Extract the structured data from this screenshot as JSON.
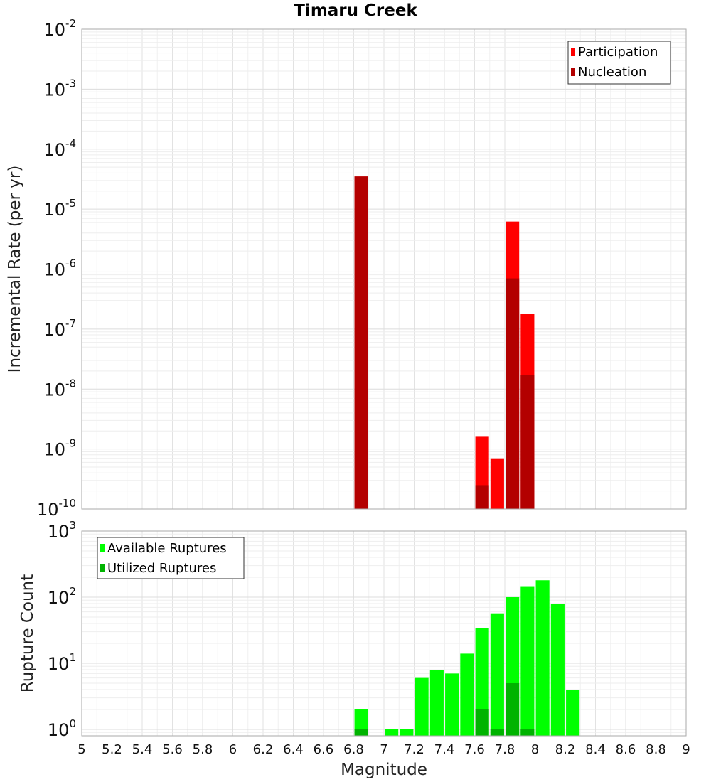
{
  "title": "Timaru Creek",
  "xlabel": "Magnitude",
  "chart_data": [
    {
      "type": "bar",
      "ylabel": "Incremental Rate (per yr)",
      "yscale": "log",
      "ylim": [
        1e-10,
        0.01
      ],
      "xlim": [
        5,
        9
      ],
      "x_ticks": [
        "5",
        "5.2",
        "5.4",
        "5.6",
        "5.8",
        "6",
        "6.2",
        "6.4",
        "6.6",
        "6.8",
        "7",
        "7.2",
        "7.4",
        "7.6",
        "7.8",
        "8",
        "8.2",
        "8.4",
        "8.6",
        "8.8",
        "9"
      ],
      "y_ticks": [
        {
          "base": "10",
          "exp": "-10",
          "value": 1e-10
        },
        {
          "base": "10",
          "exp": "-9",
          "value": 1e-09
        },
        {
          "base": "10",
          "exp": "-8",
          "value": 1e-08
        },
        {
          "base": "10",
          "exp": "-7",
          "value": 1e-07
        },
        {
          "base": "10",
          "exp": "-6",
          "value": 1e-06
        },
        {
          "base": "10",
          "exp": "-5",
          "value": 1e-05
        },
        {
          "base": "10",
          "exp": "-4",
          "value": 0.0001
        },
        {
          "base": "10",
          "exp": "-3",
          "value": 0.001
        },
        {
          "base": "10",
          "exp": "-2",
          "value": 0.01
        }
      ],
      "grid": true,
      "legend_position": "top-right",
      "bar_width": 0.09,
      "series": [
        {
          "name": "Participation",
          "color": "#ff0000",
          "points": [
            {
              "x": 6.85,
              "y": 3.5e-05
            },
            {
              "x": 7.65,
              "y": 1.6e-09
            },
            {
              "x": 7.75,
              "y": 7e-10
            },
            {
              "x": 7.85,
              "y": 6.2e-06
            },
            {
              "x": 7.95,
              "y": 1.8e-07
            }
          ]
        },
        {
          "name": "Nucleation",
          "color": "#b30000",
          "points": [
            {
              "x": 6.85,
              "y": 3.5e-05
            },
            {
              "x": 7.65,
              "y": 2.5e-10
            },
            {
              "x": 7.85,
              "y": 7e-07
            },
            {
              "x": 7.95,
              "y": 1.7e-08
            }
          ]
        }
      ]
    },
    {
      "type": "bar",
      "ylabel": "Rupture Count",
      "yscale": "log",
      "ylim": [
        0.8,
        1000
      ],
      "xlim": [
        5,
        9
      ],
      "x_ticks": [
        "5",
        "5.2",
        "5.4",
        "5.6",
        "5.8",
        "6",
        "6.2",
        "6.4",
        "6.6",
        "6.8",
        "7",
        "7.2",
        "7.4",
        "7.6",
        "7.8",
        "8",
        "8.2",
        "8.4",
        "8.6",
        "8.8",
        "9"
      ],
      "y_ticks": [
        {
          "base": "10",
          "exp": "0",
          "value": 1
        },
        {
          "base": "10",
          "exp": "1",
          "value": 10
        },
        {
          "base": "10",
          "exp": "2",
          "value": 100
        },
        {
          "base": "10",
          "exp": "3",
          "value": 1000
        }
      ],
      "grid": true,
      "legend_position": "top-left",
      "bar_width": 0.09,
      "series": [
        {
          "name": "Available Ruptures",
          "color": "#00ff00",
          "points": [
            {
              "x": 6.85,
              "y": 2
            },
            {
              "x": 7.05,
              "y": 1
            },
            {
              "x": 7.15,
              "y": 1
            },
            {
              "x": 7.25,
              "y": 6
            },
            {
              "x": 7.35,
              "y": 8
            },
            {
              "x": 7.45,
              "y": 7
            },
            {
              "x": 7.55,
              "y": 14
            },
            {
              "x": 7.65,
              "y": 34
            },
            {
              "x": 7.75,
              "y": 57
            },
            {
              "x": 7.85,
              "y": 100
            },
            {
              "x": 7.95,
              "y": 143
            },
            {
              "x": 8.05,
              "y": 180
            },
            {
              "x": 8.15,
              "y": 79
            },
            {
              "x": 8.25,
              "y": 4
            }
          ]
        },
        {
          "name": "Utilized Ruptures",
          "color": "#00b300",
          "points": [
            {
              "x": 6.85,
              "y": 1
            },
            {
              "x": 7.65,
              "y": 2
            },
            {
              "x": 7.75,
              "y": 1
            },
            {
              "x": 7.85,
              "y": 5
            },
            {
              "x": 7.95,
              "y": 1
            }
          ]
        }
      ]
    }
  ]
}
